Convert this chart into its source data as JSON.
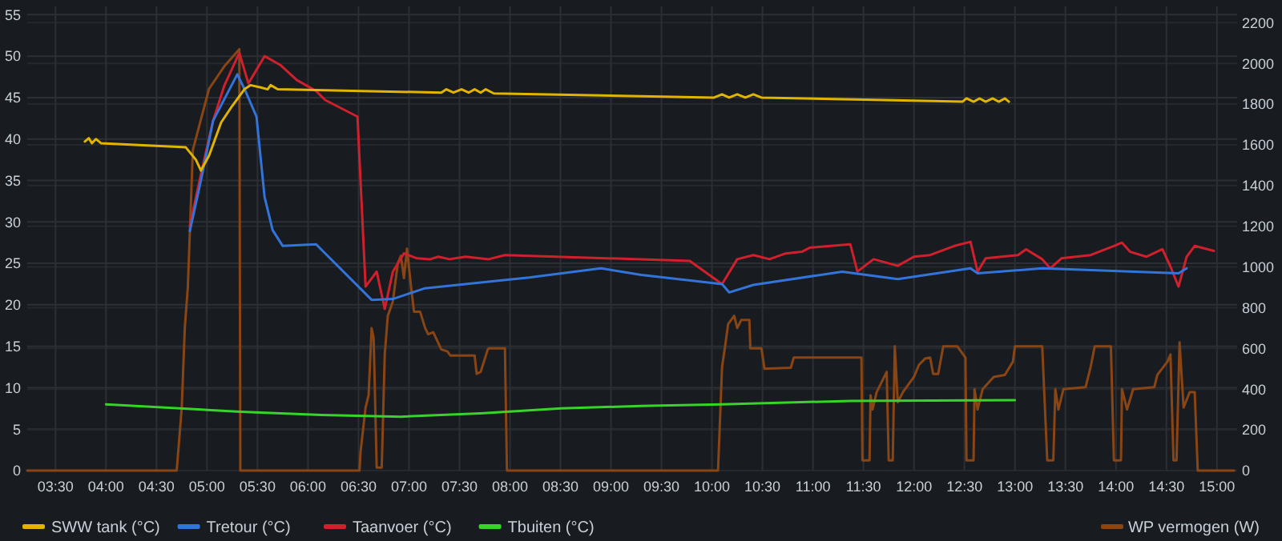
{
  "chart_data": {
    "type": "line",
    "xlim": [
      3.22,
      15.2
    ],
    "xticks": [
      {
        "value": 3.5,
        "label": "03:30"
      },
      {
        "value": 4,
        "label": "04:00"
      },
      {
        "value": 4.5,
        "label": "04:30"
      },
      {
        "value": 5,
        "label": "05:00"
      },
      {
        "value": 5.5,
        "label": "05:30"
      },
      {
        "value": 6,
        "label": "06:00"
      },
      {
        "value": 6.5,
        "label": "06:30"
      },
      {
        "value": 7,
        "label": "07:00"
      },
      {
        "value": 7.5,
        "label": "07:30"
      },
      {
        "value": 8,
        "label": "08:00"
      },
      {
        "value": 8.5,
        "label": "08:30"
      },
      {
        "value": 9,
        "label": "09:00"
      },
      {
        "value": 9.5,
        "label": "09:30"
      },
      {
        "value": 10,
        "label": "10:00"
      },
      {
        "value": 10.5,
        "label": "10:30"
      },
      {
        "value": 11,
        "label": "11:00"
      },
      {
        "value": 11.5,
        "label": "11:30"
      },
      {
        "value": 12,
        "label": "12:00"
      },
      {
        "value": 12.5,
        "label": "12:30"
      },
      {
        "value": 13,
        "label": "13:00"
      },
      {
        "value": 13.5,
        "label": "13:30"
      },
      {
        "value": 14,
        "label": "14:00"
      },
      {
        "value": 14.5,
        "label": "14:30"
      },
      {
        "value": 15,
        "label": "15:00"
      }
    ],
    "ylim": [
      0,
      56
    ],
    "yticks": [
      0,
      5,
      10,
      15,
      20,
      25,
      30,
      35,
      40,
      45,
      50,
      55
    ],
    "y2lim": [
      0,
      2280
    ],
    "y2ticks": [
      0,
      200,
      400,
      600,
      800,
      1000,
      1200,
      1400,
      1600,
      1800,
      2000,
      2200
    ],
    "grid": true,
    "legend": "bottom",
    "marker": "none",
    "line_style": "solid",
    "series": [
      {
        "name": "SWW tank (°C)",
        "color": "#e0b400",
        "x": [
          3.79,
          3.83,
          3.86,
          3.9,
          3.95,
          4.79,
          4.89,
          4.94,
          5.02,
          5.14,
          5.25,
          5.37,
          5.43,
          5.54,
          5.6,
          5.63,
          5.7,
          7.32,
          7.37,
          7.44,
          7.52,
          7.59,
          7.65,
          7.71,
          7.76,
          7.84,
          10.02,
          10.1,
          10.17,
          10.25,
          10.33,
          10.41,
          10.49,
          12.48,
          12.52,
          12.59,
          12.65,
          12.71,
          12.78,
          12.84,
          12.9,
          12.94
        ],
        "values": [
          39.7,
          40.1,
          39.5,
          40,
          39.5,
          39,
          37.5,
          36.2,
          38,
          42,
          44,
          46,
          46.5,
          46.2,
          46,
          46.5,
          46,
          45.6,
          46,
          45.6,
          46,
          45.6,
          46,
          45.6,
          46,
          45.5,
          45,
          45.4,
          45,
          45.4,
          45,
          45.4,
          45,
          44.5,
          44.9,
          44.5,
          44.9,
          44.5,
          44.9,
          44.5,
          44.9,
          44.5
        ]
      },
      {
        "name": "Tretour (°C)",
        "color": "#3274d9",
        "x": [
          4.83,
          4.94,
          5.06,
          5.3,
          5.38,
          5.49,
          5.57,
          5.65,
          5.75,
          6.08,
          6.63,
          6.84,
          7.16,
          7.71,
          8.19,
          8.9,
          9.3,
          10.1,
          10.17,
          10.41,
          11.29,
          11.84,
          12.56,
          12.63,
          13.27,
          14.62,
          14.7
        ],
        "values": [
          28.9,
          35,
          42.2,
          47.8,
          45.8,
          42.7,
          33,
          29,
          27.1,
          27.3,
          20.6,
          20.7,
          22,
          22.7,
          23.3,
          24.4,
          23.6,
          22.5,
          21.5,
          22.4,
          24,
          23.1,
          24.4,
          23.8,
          24.4,
          23.8,
          24.4
        ]
      },
      {
        "name": "Taanvoer (°C)",
        "color": "#d0202e",
        "x": [
          4.83,
          4.94,
          5.06,
          5.17,
          5.32,
          5.41,
          5.57,
          5.73,
          5.89,
          6.08,
          6.17,
          6.49,
          6.57,
          6.68,
          6.76,
          6.84,
          6.95,
          7.08,
          7.21,
          7.29,
          7.4,
          7.56,
          7.79,
          7.95,
          9.78,
          10.1,
          10.25,
          10.41,
          10.57,
          10.73,
          10.89,
          10.97,
          11.37,
          11.44,
          11.6,
          11.84,
          12,
          12.16,
          12.4,
          12.56,
          12.63,
          12.71,
          13.03,
          13.11,
          13.27,
          13.35,
          13.46,
          13.75,
          13.98,
          14.06,
          14.14,
          14.3,
          14.46,
          14.54,
          14.62,
          14.7,
          14.78,
          14.97
        ],
        "values": [
          29.5,
          35.8,
          42.2,
          46.4,
          50.4,
          46.7,
          50,
          48.9,
          47.1,
          45.8,
          44.7,
          42.7,
          22.2,
          24,
          19.5,
          24,
          26.2,
          25.6,
          25.5,
          25.8,
          25.5,
          25.8,
          25.5,
          26,
          25.3,
          22.5,
          25.5,
          26,
          25.5,
          26.2,
          26.4,
          26.9,
          27.3,
          24,
          25.5,
          24.7,
          25.8,
          26,
          27.1,
          27.6,
          24,
          25.6,
          26,
          26.7,
          25.5,
          24.4,
          25.6,
          26,
          27.1,
          27.5,
          26.4,
          25.8,
          26.7,
          24.6,
          22.2,
          25.8,
          27.1,
          26.5
        ]
      },
      {
        "name": "Tbuiten (°C)",
        "color": "#37d42a",
        "x": [
          4,
          5.33,
          6.13,
          6.92,
          7.71,
          8.51,
          9.3,
          10.1,
          11.37,
          13
        ],
        "values": [
          8,
          7.1,
          6.7,
          6.5,
          6.9,
          7.5,
          7.8,
          8,
          8.4,
          8.5
        ]
      },
      {
        "name": "WP vermogen (W)",
        "color": "#8a4515",
        "axis": "y2",
        "x": [
          3.22,
          4.7,
          4.75,
          4.78,
          4.81,
          4.86,
          5.02,
          5.17,
          5.32,
          5.33,
          6.51,
          6.52,
          6.57,
          6.6,
          6.63,
          6.65,
          6.68,
          6.73,
          6.76,
          6.79,
          6.84,
          6.89,
          6.92,
          6.95,
          6.98,
          7.02,
          7.05,
          7.11,
          7.16,
          7.19,
          7.24,
          7.32,
          7.38,
          7.41,
          7.65,
          7.67,
          7.71,
          7.78,
          7.79,
          7.95,
          7.97,
          10.06,
          10.1,
          10.13,
          10.16,
          10.22,
          10.25,
          10.29,
          10.37,
          10.38,
          10.49,
          10.52,
          10.78,
          10.81,
          11.48,
          11.49,
          11.56,
          11.57,
          11.59,
          11.63,
          11.73,
          11.75,
          11.79,
          11.81,
          11.84,
          11.89,
          12,
          12.05,
          12.11,
          12.16,
          12.19,
          12.24,
          12.29,
          12.43,
          12.51,
          12.52,
          12.59,
          12.6,
          12.63,
          12.68,
          12.79,
          12.9,
          12.98,
          13,
          13.27,
          13.32,
          13.38,
          13.4,
          13.43,
          13.48,
          13.7,
          13.75,
          13.79,
          13.95,
          13.98,
          14.05,
          14.06,
          14.11,
          14.17,
          14.38,
          14.41,
          14.51,
          14.54,
          14.57,
          14.6,
          14.63,
          14.67,
          14.73,
          14.78,
          14.81,
          15.17
        ],
        "values": [
          0,
          0,
          310,
          700,
          900,
          1575,
          1875,
          1985,
          2070,
          0,
          0,
          90,
          310,
          370,
          700,
          650,
          15,
          15,
          570,
          760,
          830,
          1020,
          1055,
          945,
          1090,
          905,
          780,
          780,
          700,
          670,
          680,
          595,
          585,
          565,
          565,
          475,
          485,
          595,
          600,
          600,
          0,
          0,
          510,
          610,
          720,
          760,
          700,
          740,
          740,
          600,
          600,
          500,
          505,
          555,
          555,
          50,
          50,
          370,
          300,
          385,
          485,
          50,
          50,
          610,
          335,
          385,
          460,
          520,
          550,
          555,
          475,
          475,
          610,
          610,
          555,
          50,
          50,
          400,
          300,
          400,
          460,
          470,
          535,
          610,
          610,
          50,
          50,
          400,
          300,
          400,
          410,
          510,
          610,
          610,
          50,
          50,
          400,
          300,
          400,
          410,
          470,
          535,
          570,
          50,
          50,
          630,
          310,
          385,
          385,
          0,
          0
        ]
      }
    ]
  }
}
